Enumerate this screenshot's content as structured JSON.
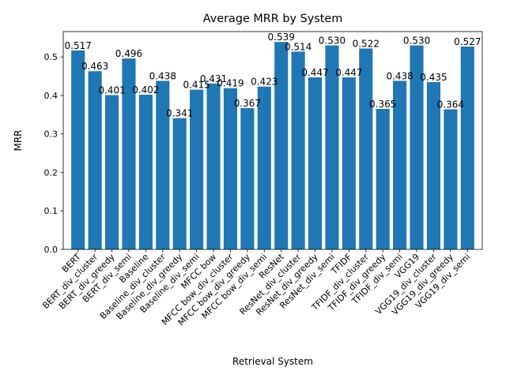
{
  "chart_data": {
    "type": "bar",
    "title": "Average MRR by System",
    "xlabel": "Retrieval System",
    "ylabel": "MRR",
    "ylim": [
      0,
      0.566
    ],
    "yticks": [
      0.0,
      0.1,
      0.2,
      0.3,
      0.4,
      0.5
    ],
    "ytick_labels": [
      "0.0",
      "0.1",
      "0.2",
      "0.3",
      "0.4",
      "0.5"
    ],
    "grid": false,
    "bar_color": "#1f77b4",
    "categories": [
      "BERT",
      "BERT_div_cluster",
      "BERT_div_greedy",
      "BERT_div_semi",
      "Baseline",
      "Baseline_div_cluster",
      "Baseline_div_greedy",
      "Baseline_div_semi",
      "MFCC bow",
      "MFCC bow_div_cluster",
      "MFCC bow_div_greedy",
      "MFCC bow_div_semi",
      "ResNet",
      "ResNet_div_cluster",
      "ResNet_div_greedy",
      "ResNet_div_semi",
      "TFIDF",
      "TFIDF_div_cluster",
      "TFIDF_div_greedy",
      "TFIDF_div_semi",
      "VGG19",
      "VGG19_div_cluster",
      "VGG19_div_greedy",
      "VGG19_div_semi"
    ],
    "values": [
      0.517,
      0.463,
      0.401,
      0.496,
      0.402,
      0.438,
      0.341,
      0.415,
      0.431,
      0.419,
      0.367,
      0.423,
      0.539,
      0.514,
      0.447,
      0.53,
      0.447,
      0.522,
      0.365,
      0.438,
      0.53,
      0.435,
      0.364,
      0.527
    ],
    "value_labels": [
      "0.517",
      "0.463",
      "0.401",
      "0.496",
      "0.402",
      "0.438",
      "0.341",
      "0.415",
      "0.431",
      "0.419",
      "0.367",
      "0.423",
      "0.539",
      "0.514",
      "0.447",
      "0.530",
      "0.447",
      "0.522",
      "0.365",
      "0.438",
      "0.530",
      "0.435",
      "0.364",
      "0.527"
    ]
  }
}
